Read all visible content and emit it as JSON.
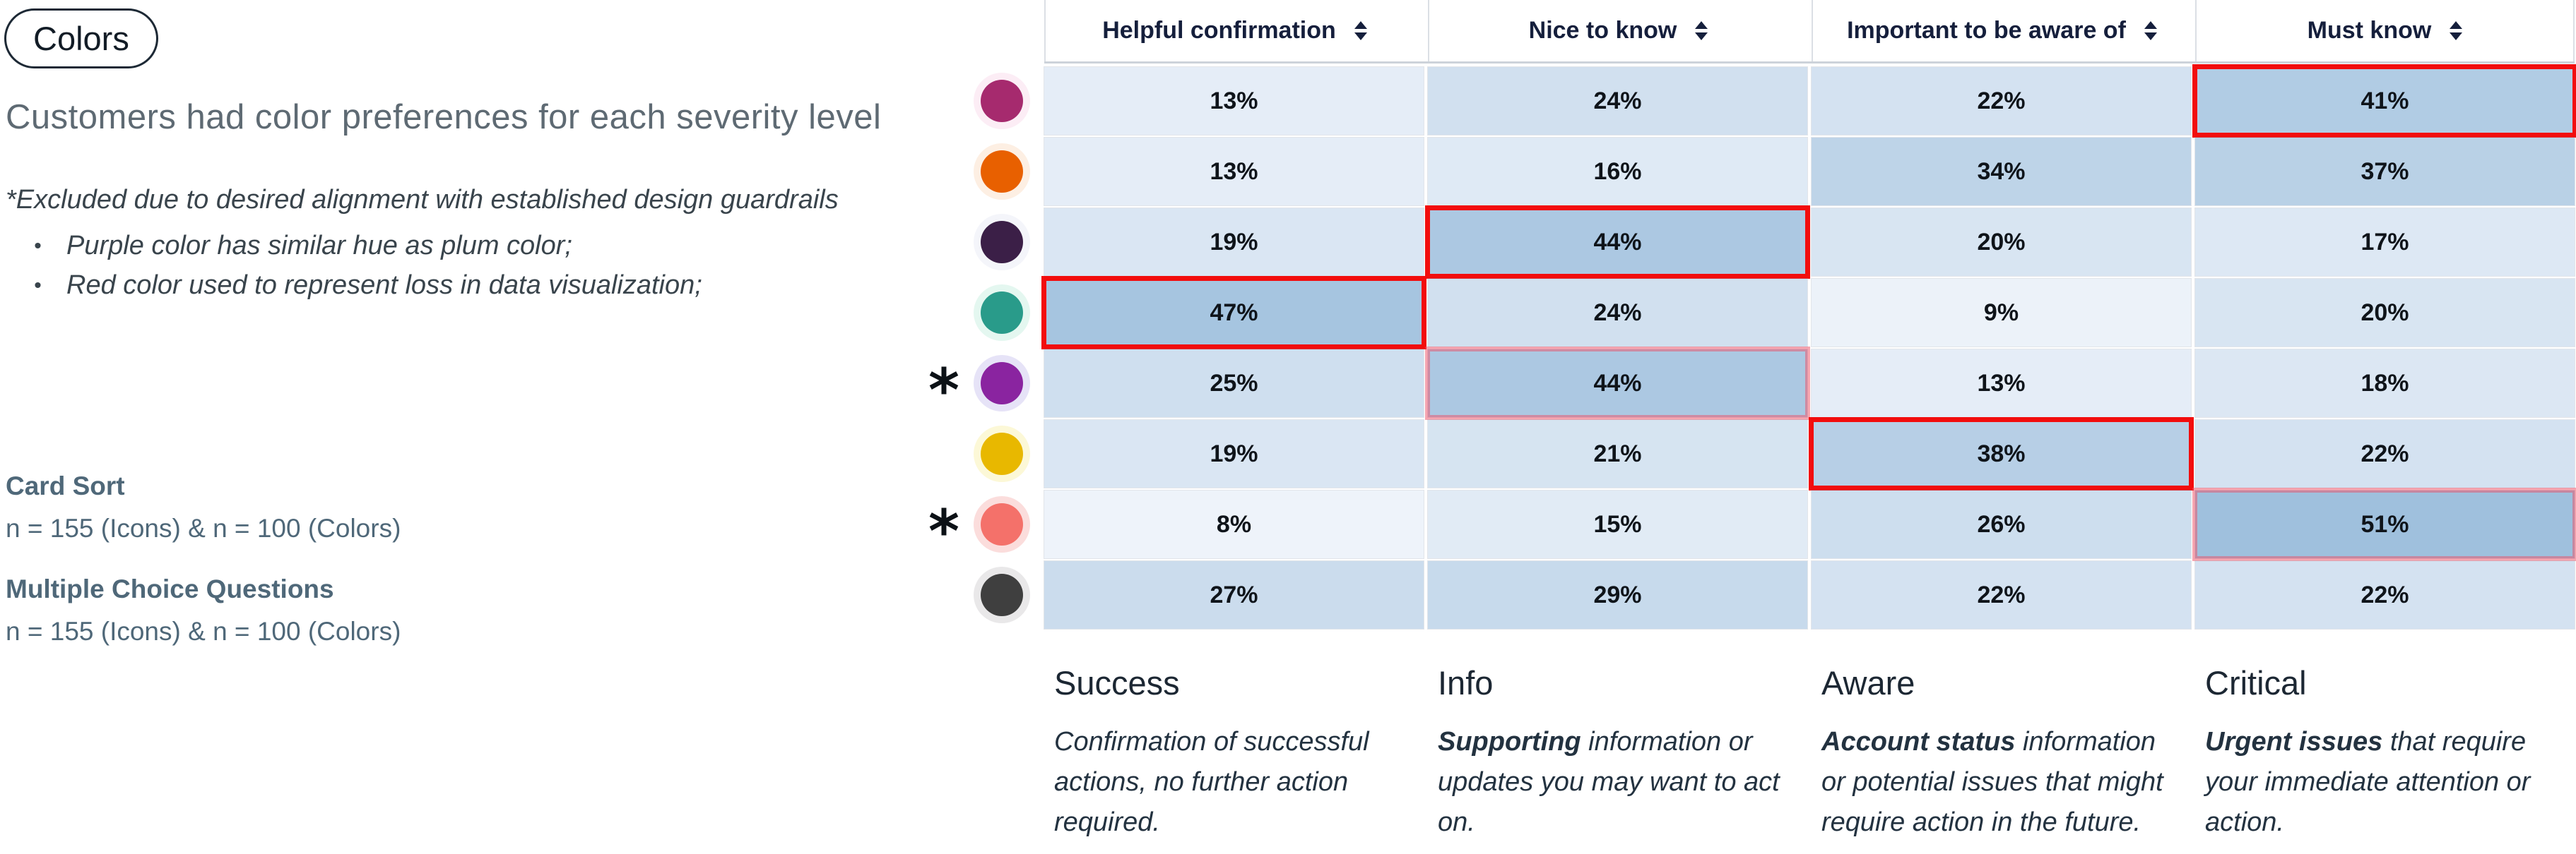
{
  "page": {
    "tag_label": "Colors",
    "heading": "Customers had color preferences for each severity level",
    "notes": {
      "title": "*Excluded due to desired alignment with established design guardrails",
      "bullets": [
        "Purple color has similar hue as plum color;",
        "Red color used to represent loss in data visualization;"
      ]
    },
    "methods": [
      {
        "name": "Card Sort",
        "sample": "n = 155 (Icons) & n = 100 (Colors)"
      },
      {
        "name": "Multiple Choice Questions",
        "sample": "n = 155 (Icons) & n = 100 (Colors)"
      }
    ],
    "excluded_marker": "*"
  },
  "table": {
    "columns": [
      "Helpful confirmation",
      "Nice to know",
      "Important to be aware of",
      "Must know"
    ],
    "rows": [
      {
        "name": "berry",
        "swatch": "#a62a6e",
        "halo": "#fcedf5",
        "excluded": false,
        "values": [
          13,
          24,
          22,
          41
        ],
        "highlight": 3
      },
      {
        "name": "orange",
        "swatch": "#e86000",
        "halo": "#fdefe3",
        "excluded": false,
        "values": [
          13,
          16,
          34,
          37
        ],
        "highlight": null
      },
      {
        "name": "plum",
        "swatch": "#3b1f47",
        "halo": "#f4f5fa",
        "excluded": false,
        "values": [
          19,
          44,
          20,
          17
        ],
        "highlight": 1
      },
      {
        "name": "teal",
        "swatch": "#299b8a",
        "halo": "#e4f7f0",
        "excluded": false,
        "values": [
          47,
          24,
          9,
          20
        ],
        "highlight": 0
      },
      {
        "name": "purple",
        "swatch": "#8a24a0",
        "halo": "#e6e3f7",
        "excluded": true,
        "values": [
          25,
          44,
          13,
          18
        ],
        "highlight": 1
      },
      {
        "name": "yellow",
        "swatch": "#e8b800",
        "halo": "#fcf8d7",
        "excluded": false,
        "values": [
          19,
          21,
          38,
          22
        ],
        "highlight": 2
      },
      {
        "name": "red",
        "swatch": "#f4716a",
        "halo": "#fbdddc",
        "excluded": true,
        "values": [
          8,
          15,
          26,
          51
        ],
        "highlight": 3
      },
      {
        "name": "gray",
        "swatch": "#3f3f3f",
        "halo": "#e9e8e9",
        "excluded": false,
        "values": [
          27,
          29,
          22,
          22
        ],
        "highlight": null
      }
    ]
  },
  "legend": [
    {
      "title": "Success",
      "lead": "",
      "rest": "Confirmation of successful actions, no further action required."
    },
    {
      "title": "Info",
      "lead": "Supporting",
      "rest": "information or updates you may want to act on."
    },
    {
      "title": "Aware",
      "lead": "Account status",
      "rest": "information or potential issues that might require action in the future."
    },
    {
      "title": "Critical",
      "lead": "Urgent issues",
      "rest": "that require your immediate attention or action."
    }
  ],
  "colors": {
    "highlight_strong": "#f20d0d",
    "highlight_muted": "rgba(238,78,100,0.5)",
    "heat_low": "#eef3fa",
    "heat_high": "#9fc0dd",
    "heat_low_value": 8,
    "heat_high_value": 51,
    "header_text": "#151f3c",
    "cell_text": "#0f141a"
  },
  "chart_data": {
    "type": "heatmap",
    "title": "Customers had color preferences for each severity level",
    "columns": [
      "Helpful confirmation",
      "Nice to know",
      "Important to be aware of",
      "Must know"
    ],
    "rows": [
      "berry",
      "orange",
      "plum",
      "teal",
      "purple (excluded)",
      "yellow",
      "red (excluded)",
      "gray"
    ],
    "values_percent": [
      [
        13,
        24,
        22,
        41
      ],
      [
        13,
        16,
        34,
        37
      ],
      [
        19,
        44,
        20,
        17
      ],
      [
        47,
        24,
        9,
        20
      ],
      [
        25,
        44,
        13,
        18
      ],
      [
        19,
        21,
        38,
        22
      ],
      [
        8,
        15,
        26,
        51
      ],
      [
        27,
        29,
        22,
        22
      ]
    ],
    "highlighted_cells": [
      {
        "row": "berry",
        "column": "Must know",
        "value": 41,
        "style": "strong"
      },
      {
        "row": "plum",
        "column": "Nice to know",
        "value": 44,
        "style": "strong"
      },
      {
        "row": "teal",
        "column": "Helpful confirmation",
        "value": 47,
        "style": "strong"
      },
      {
        "row": "purple (excluded)",
        "column": "Nice to know",
        "value": 44,
        "style": "muted"
      },
      {
        "row": "yellow",
        "column": "Important to be aware of",
        "value": 38,
        "style": "strong"
      },
      {
        "row": "red (excluded)",
        "column": "Must know",
        "value": 51,
        "style": "muted"
      }
    ]
  }
}
